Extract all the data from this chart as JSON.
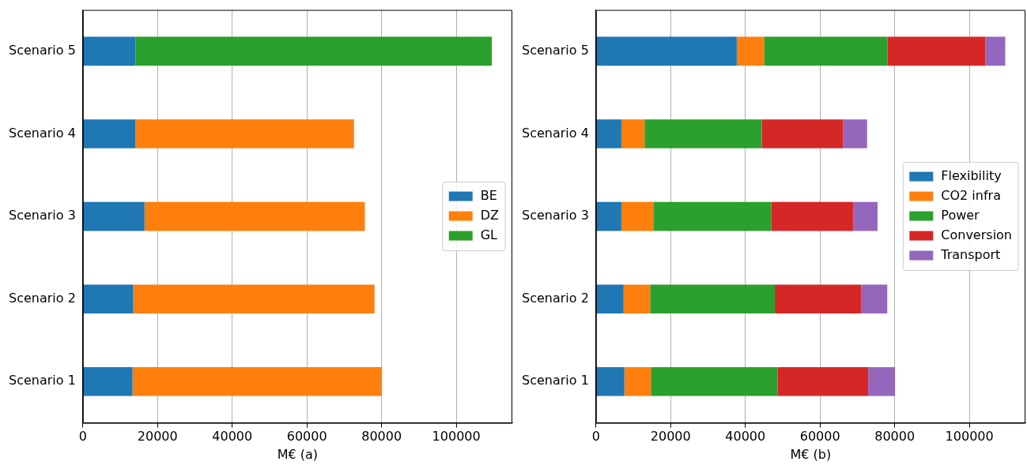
{
  "chart_data": [
    {
      "type": "bar",
      "orientation": "horizontal",
      "stacked": true,
      "xlabel": "M€ (a)",
      "categories": [
        "Scenario 5",
        "Scenario 4",
        "Scenario 3",
        "Scenario 2",
        "Scenario 1"
      ],
      "series": [
        {
          "name": "BE",
          "color": "#1f77b4",
          "values": [
            14100,
            14100,
            16500,
            13500,
            13300
          ]
        },
        {
          "name": "DZ",
          "color": "#ff7f0e",
          "values": [
            0,
            58500,
            59000,
            64600,
            66800
          ]
        },
        {
          "name": "GL",
          "color": "#2ca02c",
          "values": [
            95400,
            null,
            null,
            null,
            null
          ]
        }
      ],
      "xlim": [
        0,
        115000
      ],
      "xticks": [
        0,
        20000,
        40000,
        60000,
        80000,
        100000
      ],
      "grid": "x",
      "legend": "center right"
    },
    {
      "type": "bar",
      "orientation": "horizontal",
      "stacked": true,
      "xlabel": "M€ (b)",
      "categories": [
        "Scenario 5",
        "Scenario 4",
        "Scenario 3",
        "Scenario 2",
        "Scenario 1"
      ],
      "series": [
        {
          "name": "Flexibility",
          "color": "#1f77b4",
          "values": [
            37700,
            6800,
            6800,
            7400,
            7600
          ]
        },
        {
          "name": "CO2 infra",
          "color": "#ff7f0e",
          "values": [
            7300,
            6200,
            8700,
            7100,
            7100
          ]
        },
        {
          "name": "Power",
          "color": "#2ca02c",
          "values": [
            33100,
            31400,
            31400,
            33400,
            33900
          ]
        },
        {
          "name": "Conversion",
          "color": "#d62728",
          "values": [
            26200,
            21800,
            22000,
            23100,
            24300
          ]
        },
        {
          "name": "Transport",
          "color": "#9467bd",
          "values": [
            5300,
            6400,
            6500,
            7000,
            7200
          ]
        }
      ],
      "xlim": [
        0,
        115000
      ],
      "xticks": [
        0,
        20000,
        40000,
        60000,
        80000,
        100000
      ],
      "grid": "x",
      "legend": "center right"
    }
  ]
}
